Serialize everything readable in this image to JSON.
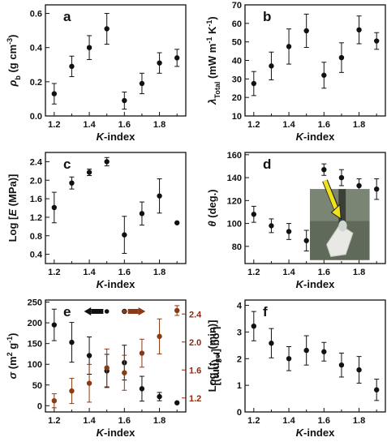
{
  "figure": {
    "photo_present": true
  },
  "chart_data": [
    {
      "id": "a",
      "panel_label": "a",
      "type": "scatter",
      "xlabel": "K-index",
      "ylabel": "ρ_b (g cm^-3)",
      "xlim": [
        1.15,
        1.95
      ],
      "ylim": [
        0.0,
        0.65
      ],
      "xticks": [
        1.2,
        1.4,
        1.6,
        1.8
      ],
      "xtick_labels": [
        "1.2",
        "1.4",
        "1.6",
        "1.8"
      ],
      "yticks": [
        0.0,
        0.2,
        0.4,
        0.6
      ],
      "ytick_labels": [
        "0.0",
        "0.2",
        "0.4",
        "0.6"
      ],
      "points": [
        {
          "x": 1.2,
          "y": 0.13,
          "err": 0.06
        },
        {
          "x": 1.3,
          "y": 0.29,
          "err": 0.06
        },
        {
          "x": 1.4,
          "y": 0.4,
          "err": 0.07
        },
        {
          "x": 1.5,
          "y": 0.51,
          "err": 0.09
        },
        {
          "x": 1.6,
          "y": 0.09,
          "err": 0.05
        },
        {
          "x": 1.7,
          "y": 0.19,
          "err": 0.06
        },
        {
          "x": 1.8,
          "y": 0.31,
          "err": 0.06
        },
        {
          "x": 1.9,
          "y": 0.34,
          "err": 0.05
        }
      ]
    },
    {
      "id": "b",
      "panel_label": "b",
      "type": "scatter",
      "xlabel": "K-index",
      "ylabel": "λ_Total (mW m^-1 K^-1)",
      "xlim": [
        1.15,
        1.95
      ],
      "ylim": [
        10,
        70
      ],
      "xticks": [
        1.2,
        1.4,
        1.6,
        1.8
      ],
      "xtick_labels": [
        "1.2",
        "1.4",
        "1.6",
        "1.8"
      ],
      "yticks": [
        10,
        20,
        30,
        40,
        50,
        60,
        70
      ],
      "ytick_labels": [
        "10",
        "20",
        "30",
        "40",
        "50",
        "60",
        "70"
      ],
      "points": [
        {
          "x": 1.2,
          "y": 27.5,
          "err": 6.5
        },
        {
          "x": 1.3,
          "y": 37,
          "err": 7.5
        },
        {
          "x": 1.4,
          "y": 47.5,
          "err": 9.5
        },
        {
          "x": 1.5,
          "y": 56,
          "err": 9
        },
        {
          "x": 1.6,
          "y": 32,
          "err": 7
        },
        {
          "x": 1.7,
          "y": 41.5,
          "err": 8
        },
        {
          "x": 1.8,
          "y": 56.5,
          "err": 7.5
        },
        {
          "x": 1.9,
          "y": 50.5,
          "err": 4.5
        }
      ]
    },
    {
      "id": "c",
      "panel_label": "c",
      "type": "scatter",
      "xlabel": "K-index",
      "ylabel": "Log [E (MPa)]",
      "xlim": [
        1.15,
        1.95
      ],
      "ylim": [
        0.2,
        2.6
      ],
      "xticks": [
        1.2,
        1.4,
        1.6,
        1.8
      ],
      "xtick_labels": [
        "1.2",
        "1.4",
        "1.6",
        "1.8"
      ],
      "yticks": [
        0.4,
        0.8,
        1.2,
        1.6,
        2.0,
        2.4
      ],
      "ytick_labels": [
        "0.4",
        "0.8",
        "1.2",
        "1.6",
        "2.0",
        "2.4"
      ],
      "points": [
        {
          "x": 1.2,
          "y": 1.41,
          "err": 0.33
        },
        {
          "x": 1.3,
          "y": 1.94,
          "err": 0.13
        },
        {
          "x": 1.4,
          "y": 2.17,
          "err": 0.07
        },
        {
          "x": 1.5,
          "y": 2.4,
          "err": 0.09
        },
        {
          "x": 1.6,
          "y": 0.82,
          "err": 0.4
        },
        {
          "x": 1.7,
          "y": 1.28,
          "err": 0.25
        },
        {
          "x": 1.8,
          "y": 1.66,
          "err": 0.37
        },
        {
          "x": 1.9,
          "y": 1.08,
          "err": 0.0
        }
      ]
    },
    {
      "id": "d",
      "panel_label": "d",
      "type": "scatter",
      "xlabel": "K-index",
      "ylabel": "θ (deg.)",
      "xlim": [
        1.15,
        1.95
      ],
      "ylim": [
        65,
        162
      ],
      "xticks": [
        1.2,
        1.4,
        1.6,
        1.8
      ],
      "xtick_labels": [
        "1.2",
        "1.4",
        "1.6",
        "1.8"
      ],
      "yticks": [
        80,
        100,
        120,
        140,
        160
      ],
      "ytick_labels": [
        "80",
        "100",
        "120",
        "140",
        "160"
      ],
      "points": [
        {
          "x": 1.2,
          "y": 108,
          "err": 7
        },
        {
          "x": 1.3,
          "y": 98,
          "err": 6
        },
        {
          "x": 1.4,
          "y": 93,
          "err": 7
        },
        {
          "x": 1.5,
          "y": 85,
          "err": 9
        },
        {
          "x": 1.6,
          "y": 147,
          "err": 5
        },
        {
          "x": 1.7,
          "y": 140,
          "err": 7
        },
        {
          "x": 1.8,
          "y": 133,
          "err": 6
        },
        {
          "x": 1.9,
          "y": 130,
          "err": 9
        }
      ]
    },
    {
      "id": "e",
      "panel_label": "e",
      "type": "scatter",
      "xlabel": "K-index",
      "ylabel": "σ (m^2 g^-1)",
      "ylabel_right": "Log [r (nm)]",
      "xlim": [
        1.15,
        1.95
      ],
      "ylim": [
        -15,
        255
      ],
      "ylim_right": [
        1.0,
        2.6
      ],
      "xticks": [
        1.2,
        1.4,
        1.6,
        1.8
      ],
      "xtick_labels": [
        "1.2",
        "1.4",
        "1.6",
        "1.8"
      ],
      "yticks": [
        0,
        50,
        100,
        150,
        200,
        250
      ],
      "ytick_labels": [
        "0",
        "50",
        "100",
        "150",
        "200",
        "250"
      ],
      "yticks_right": [
        1.2,
        1.6,
        2.0,
        2.4
      ],
      "ytick_labels_right": [
        "1.2",
        "1.6",
        "2.0",
        "2.4"
      ],
      "colors": {
        "left_series": "#111111",
        "right_series": "#8b3a16",
        "right_axis": "#8b2a10"
      },
      "series": [
        {
          "axis": "left",
          "points": [
            {
              "x": 1.2,
              "y": 195,
              "err": 38
            },
            {
              "x": 1.3,
              "y": 153,
              "err": 48
            },
            {
              "x": 1.4,
              "y": 121,
              "err": 45
            },
            {
              "x": 1.5,
              "y": 84,
              "err": 40
            },
            {
              "x": 1.6,
              "y": 104,
              "err": 42
            },
            {
              "x": 1.7,
              "y": 41,
              "err": 30
            },
            {
              "x": 1.8,
              "y": 22,
              "err": 10
            },
            {
              "x": 1.9,
              "y": 7,
              "err": 0
            }
          ]
        },
        {
          "axis": "right",
          "points": [
            {
              "x": 1.2,
              "y": 1.16,
              "err": 0.1
            },
            {
              "x": 1.3,
              "y": 1.3,
              "err": 0.18
            },
            {
              "x": 1.4,
              "y": 1.41,
              "err": 0.27
            },
            {
              "x": 1.5,
              "y": 1.63,
              "err": 0.27
            },
            {
              "x": 1.6,
              "y": 1.56,
              "err": 0.25
            },
            {
              "x": 1.7,
              "y": 1.84,
              "err": 0.2
            },
            {
              "x": 1.8,
              "y": 2.08,
              "err": 0.25
            },
            {
              "x": 1.9,
              "y": 2.45,
              "err": 0.07
            }
          ]
        }
      ]
    },
    {
      "id": "f",
      "panel_label": "f",
      "type": "scatter",
      "xlabel": "K-index",
      "ylabel": "Log [t_gel (min)]",
      "xlim": [
        1.15,
        1.95
      ],
      "ylim": [
        0.0,
        4.2
      ],
      "xticks": [
        1.2,
        1.4,
        1.6,
        1.8
      ],
      "xtick_labels": [
        "1.2",
        "1.4",
        "1.6",
        "1.8"
      ],
      "yticks": [
        0,
        1,
        2,
        3,
        4
      ],
      "ytick_labels": [
        "0",
        "1",
        "2",
        "3",
        "4"
      ],
      "points": [
        {
          "x": 1.2,
          "y": 3.22,
          "err": 0.55
        },
        {
          "x": 1.3,
          "y": 2.58,
          "err": 0.55
        },
        {
          "x": 1.4,
          "y": 2.0,
          "err": 0.45
        },
        {
          "x": 1.5,
          "y": 2.31,
          "err": 0.55
        },
        {
          "x": 1.6,
          "y": 2.26,
          "err": 0.35
        },
        {
          "x": 1.7,
          "y": 1.76,
          "err": 0.45
        },
        {
          "x": 1.8,
          "y": 1.58,
          "err": 0.5
        },
        {
          "x": 1.9,
          "y": 0.83,
          "err": 0.4
        }
      ]
    }
  ]
}
